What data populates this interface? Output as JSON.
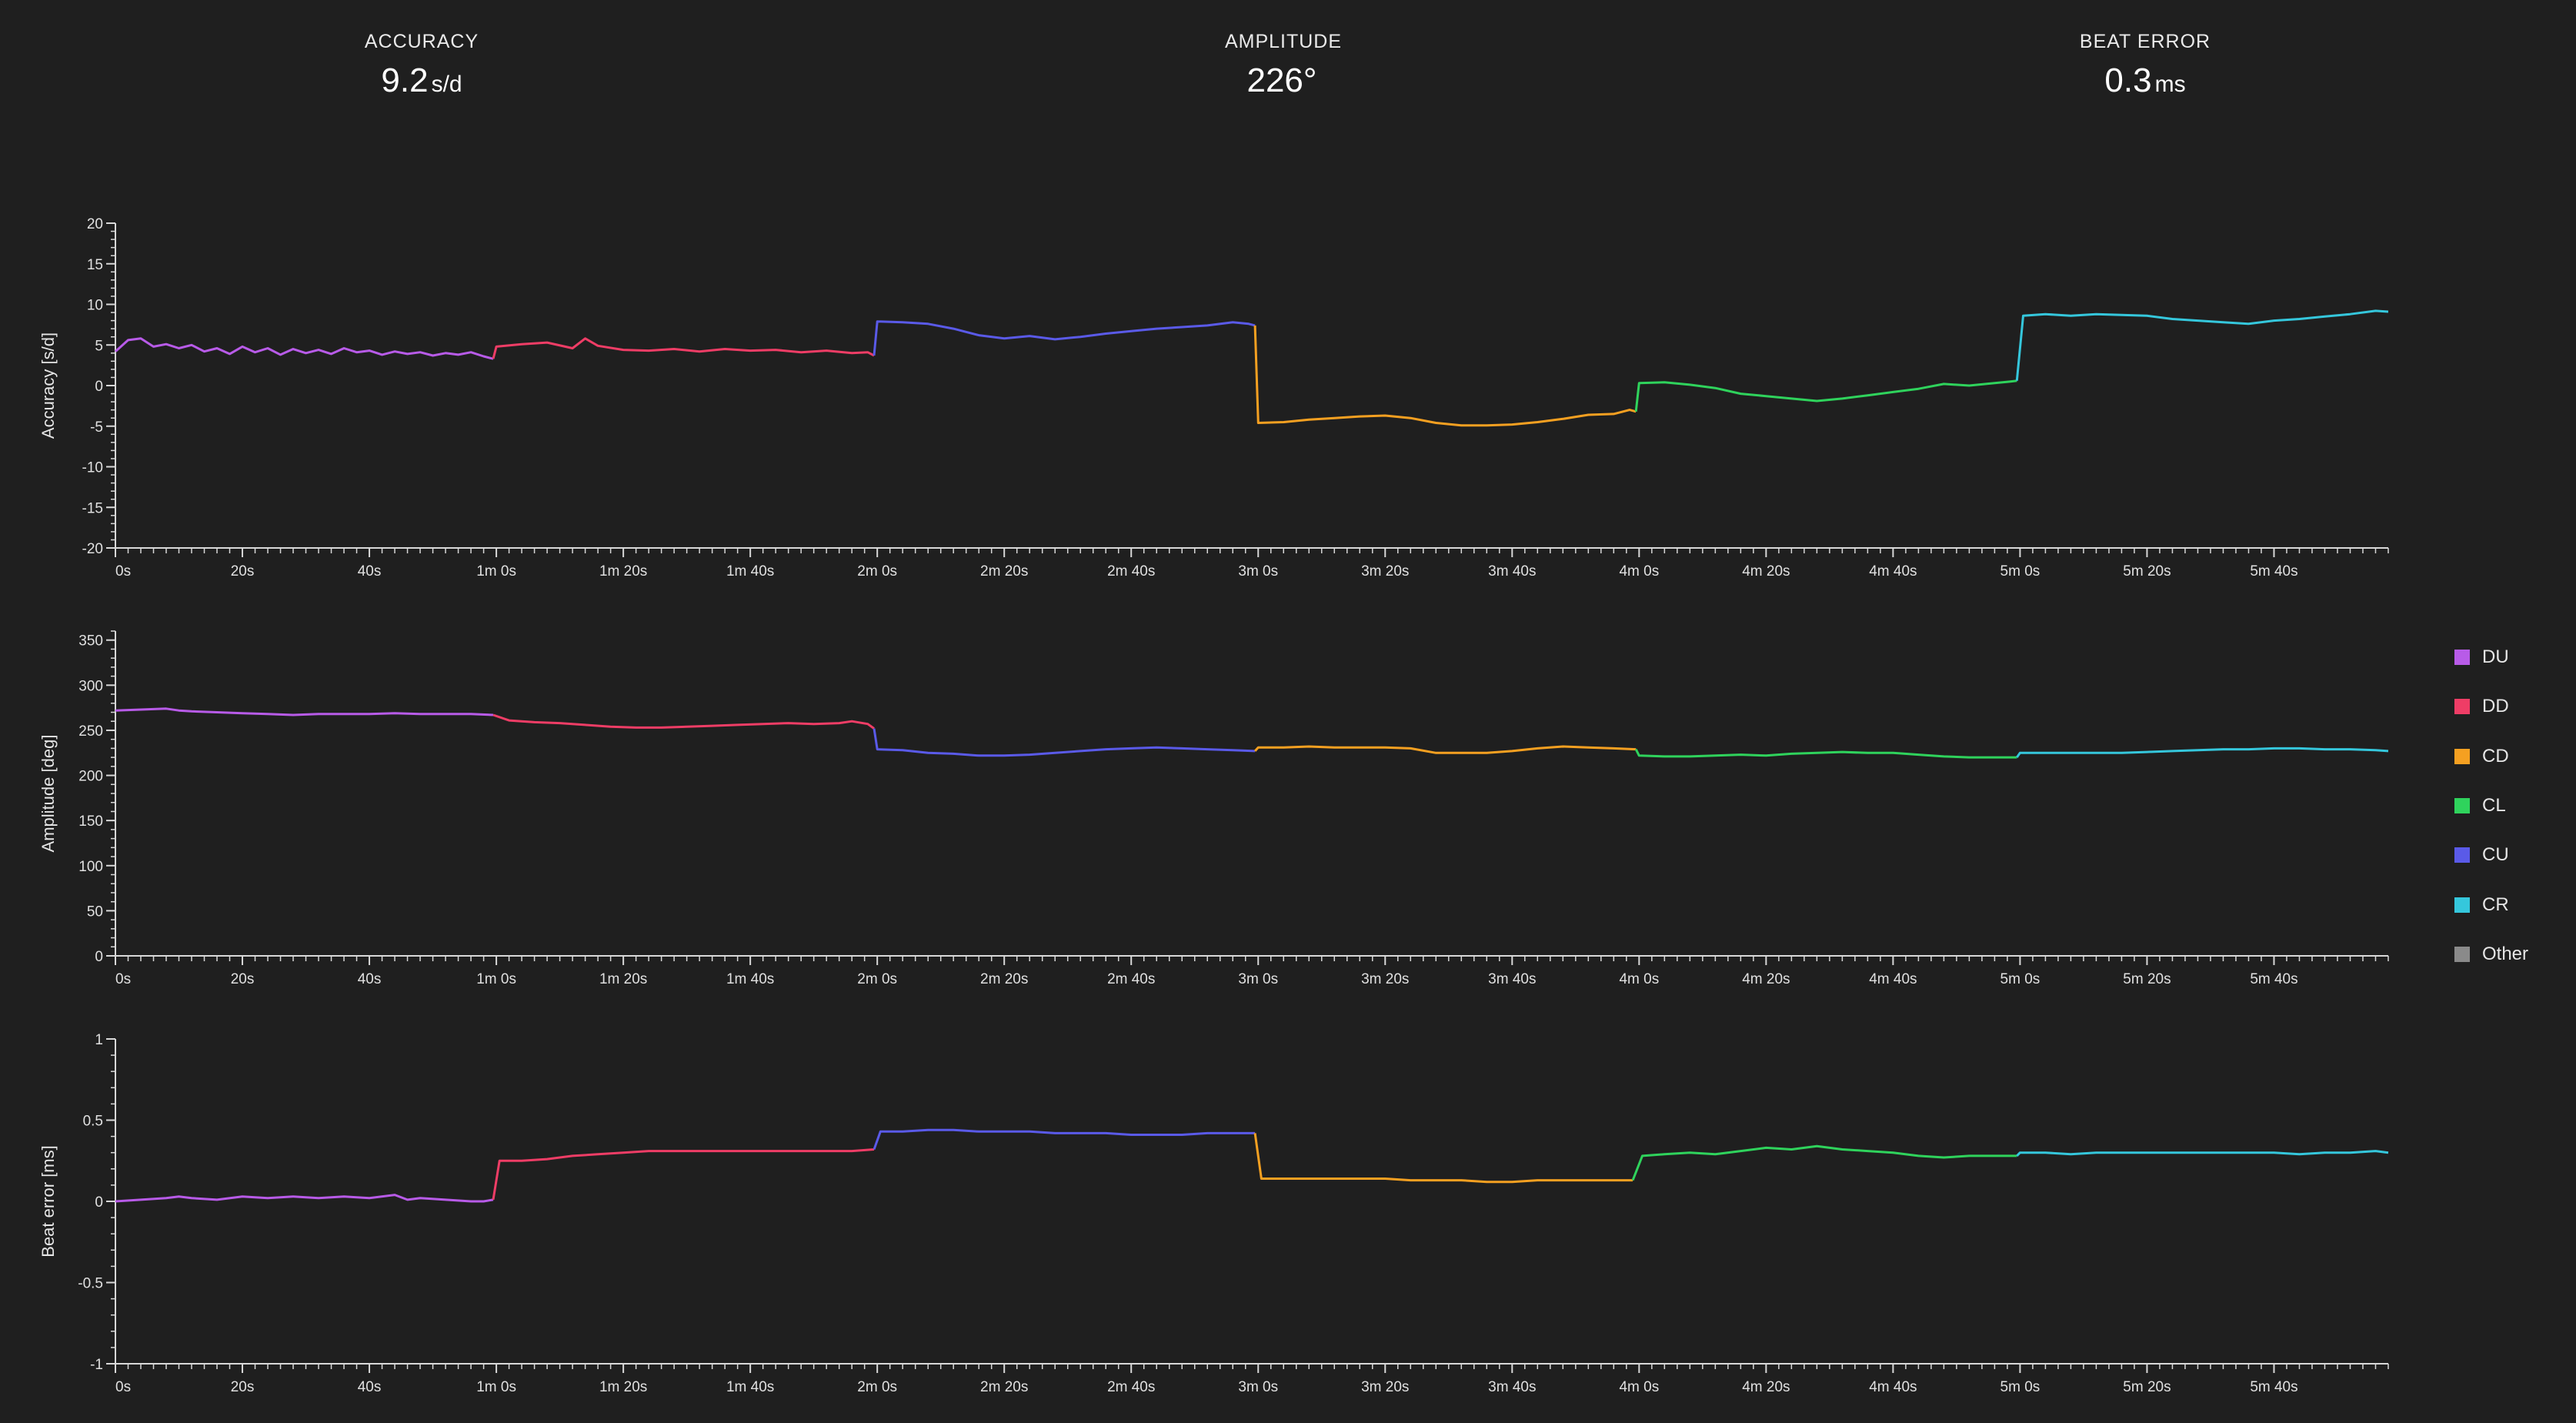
{
  "metrics": {
    "accuracy": {
      "label": "ACCURACY",
      "value": "9.2",
      "unit": "s/d"
    },
    "amplitude": {
      "label": "AMPLITUDE",
      "value": "226°",
      "unit": ""
    },
    "beat_error": {
      "label": "BEAT ERROR",
      "value": "0.3",
      "unit": "ms"
    }
  },
  "legend": [
    {
      "label": "DU",
      "color": "#b85be8"
    },
    {
      "label": "DD",
      "color": "#ef3d66"
    },
    {
      "label": "CD",
      "color": "#f5a021"
    },
    {
      "label": "CL",
      "color": "#2fd35c"
    },
    {
      "label": "CU",
      "color": "#5a5ae8"
    },
    {
      "label": "CR",
      "color": "#35c7dc"
    },
    {
      "label": "Other",
      "color": "#8a8a8a"
    }
  ],
  "chart_data": [
    {
      "type": "line",
      "ylabel": "Accuracy [s/d]",
      "xlim": [
        0,
        358
      ],
      "ylim": [
        -20,
        20
      ],
      "yticks": [
        -20,
        -15,
        -10,
        -5,
        0,
        5,
        10,
        15,
        20
      ],
      "xticks": [
        0,
        20,
        40,
        60,
        80,
        100,
        120,
        140,
        160,
        180,
        200,
        220,
        240,
        260,
        280,
        300,
        320,
        340
      ],
      "xtick_labels": [
        "0s",
        "20s",
        "40s",
        "1m 0s",
        "1m 20s",
        "1m 40s",
        "2m 0s",
        "2m 20s",
        "2m 40s",
        "3m 0s",
        "3m 20s",
        "3m 40s",
        "4m 0s",
        "4m 20s",
        "4m 40s",
        "5m 0s",
        "5m 20s",
        "5m 40s"
      ],
      "grid": false,
      "series": [
        {
          "name": "DU",
          "color": "#b85be8",
          "x": [
            0,
            2,
            4,
            6,
            8,
            10,
            12,
            14,
            16,
            18,
            20,
            22,
            24,
            26,
            28,
            30,
            32,
            34,
            36,
            38,
            40,
            42,
            44,
            46,
            48,
            50,
            52,
            54,
            56,
            58,
            59.5
          ],
          "y": [
            4.2,
            5.6,
            5.8,
            4.8,
            5.1,
            4.6,
            5.0,
            4.2,
            4.6,
            3.9,
            4.8,
            4.1,
            4.6,
            3.8,
            4.5,
            4.0,
            4.4,
            3.9,
            4.6,
            4.1,
            4.3,
            3.8,
            4.2,
            3.9,
            4.1,
            3.7,
            4.0,
            3.8,
            4.1,
            3.6,
            3.3
          ]
        },
        {
          "name": "DD",
          "color": "#ef3d66",
          "x": [
            59.5,
            60,
            64,
            68,
            72,
            74,
            76,
            80,
            84,
            88,
            92,
            96,
            100,
            104,
            108,
            112,
            116,
            118.5,
            119.5
          ],
          "y": [
            3.3,
            4.8,
            5.1,
            5.3,
            4.6,
            5.8,
            4.9,
            4.4,
            4.3,
            4.5,
            4.2,
            4.5,
            4.3,
            4.4,
            4.1,
            4.3,
            4.0,
            4.1,
            3.7
          ]
        },
        {
          "name": "CU",
          "color": "#5a5ae8",
          "x": [
            119.5,
            120,
            124,
            128,
            132,
            136,
            140,
            144,
            148,
            152,
            156,
            160,
            164,
            168,
            172,
            176,
            178.5,
            179.5
          ],
          "y": [
            3.7,
            7.9,
            7.8,
            7.6,
            7.0,
            6.2,
            5.8,
            6.1,
            5.7,
            6.0,
            6.4,
            6.7,
            7.0,
            7.2,
            7.4,
            7.8,
            7.6,
            7.4
          ]
        },
        {
          "name": "CD",
          "color": "#f5a021",
          "x": [
            179.5,
            180,
            184,
            188,
            192,
            196,
            200,
            204,
            208,
            212,
            216,
            220,
            224,
            228,
            232,
            236,
            238.5,
            239.5
          ],
          "y": [
            7.4,
            -4.6,
            -4.5,
            -4.2,
            -4.0,
            -3.8,
            -3.7,
            -4.0,
            -4.6,
            -4.9,
            -4.9,
            -4.8,
            -4.5,
            -4.1,
            -3.6,
            -3.5,
            -3.0,
            -3.2
          ]
        },
        {
          "name": "CL",
          "color": "#2fd35c",
          "x": [
            239.5,
            240,
            244,
            248,
            252,
            256,
            260,
            264,
            268,
            272,
            276,
            280,
            284,
            288,
            292,
            296,
            298.5,
            299.5
          ],
          "y": [
            -3.2,
            0.3,
            0.4,
            0.1,
            -0.3,
            -1.0,
            -1.3,
            -1.6,
            -1.9,
            -1.6,
            -1.2,
            -0.8,
            -0.4,
            0.2,
            0.0,
            0.3,
            0.5,
            0.6
          ]
        },
        {
          "name": "CR",
          "color": "#35c7dc",
          "x": [
            299.5,
            300.5,
            304,
            308,
            312,
            316,
            320,
            324,
            328,
            332,
            336,
            340,
            344,
            348,
            352,
            356,
            358
          ],
          "y": [
            0.6,
            8.6,
            8.8,
            8.6,
            8.8,
            8.7,
            8.6,
            8.2,
            8.0,
            7.8,
            7.6,
            8.0,
            8.2,
            8.5,
            8.8,
            9.2,
            9.1
          ]
        }
      ]
    },
    {
      "type": "line",
      "ylabel": "Amplitude [deg]",
      "xlim": [
        0,
        358
      ],
      "ylim": [
        0,
        360
      ],
      "yticks": [
        0,
        50,
        100,
        150,
        200,
        250,
        300,
        350
      ],
      "xticks": [
        0,
        20,
        40,
        60,
        80,
        100,
        120,
        140,
        160,
        180,
        200,
        220,
        240,
        260,
        280,
        300,
        320,
        340
      ],
      "xtick_labels": [
        "0s",
        "20s",
        "40s",
        "1m 0s",
        "1m 20s",
        "1m 40s",
        "2m 0s",
        "2m 20s",
        "2m 40s",
        "3m 0s",
        "3m 20s",
        "3m 40s",
        "4m 0s",
        "4m 20s",
        "4m 40s",
        "5m 0s",
        "5m 20s",
        "5m 40s"
      ],
      "grid": false,
      "series": [
        {
          "name": "DU",
          "color": "#b85be8",
          "x": [
            0,
            4,
            8,
            10,
            12,
            16,
            20,
            24,
            28,
            32,
            36,
            40,
            44,
            48,
            52,
            56,
            59.5
          ],
          "y": [
            272,
            273,
            274,
            272,
            271,
            270,
            269,
            268,
            267,
            268,
            268,
            268,
            269,
            268,
            268,
            268,
            267
          ]
        },
        {
          "name": "DD",
          "color": "#ef3d66",
          "x": [
            59.5,
            62,
            66,
            70,
            74,
            78,
            82,
            86,
            90,
            94,
            98,
            102,
            106,
            110,
            114,
            116,
            118.5,
            119.5
          ],
          "y": [
            267,
            261,
            259,
            258,
            256,
            254,
            253,
            253,
            254,
            255,
            256,
            257,
            258,
            257,
            258,
            260,
            257,
            252
          ]
        },
        {
          "name": "CU",
          "color": "#5a5ae8",
          "x": [
            119.5,
            120,
            124,
            128,
            132,
            136,
            140,
            144,
            148,
            152,
            156,
            160,
            164,
            168,
            172,
            176,
            179.5
          ],
          "y": [
            252,
            229,
            228,
            225,
            224,
            222,
            222,
            223,
            225,
            227,
            229,
            230,
            231,
            230,
            229,
            228,
            227
          ]
        },
        {
          "name": "CD",
          "color": "#f5a021",
          "x": [
            179.5,
            180,
            184,
            188,
            192,
            196,
            200,
            204,
            208,
            212,
            216,
            220,
            224,
            228,
            232,
            236,
            239.5
          ],
          "y": [
            227,
            231,
            231,
            232,
            231,
            231,
            231,
            230,
            225,
            225,
            225,
            227,
            230,
            232,
            231,
            230,
            229
          ]
        },
        {
          "name": "CL",
          "color": "#2fd35c",
          "x": [
            239.5,
            240,
            244,
            248,
            252,
            256,
            260,
            264,
            268,
            272,
            276,
            280,
            284,
            288,
            292,
            296,
            299.5
          ],
          "y": [
            229,
            222,
            221,
            221,
            222,
            223,
            222,
            224,
            225,
            226,
            225,
            225,
            223,
            221,
            220,
            220,
            220
          ]
        },
        {
          "name": "CR",
          "color": "#35c7dc",
          "x": [
            299.5,
            300,
            304,
            308,
            312,
            316,
            320,
            324,
            328,
            332,
            336,
            340,
            344,
            348,
            352,
            356,
            358
          ],
          "y": [
            220,
            225,
            225,
            225,
            225,
            225,
            226,
            227,
            228,
            229,
            229,
            230,
            230,
            229,
            229,
            228,
            227
          ]
        }
      ]
    },
    {
      "type": "line",
      "ylabel": "Beat error [ms]",
      "xlim": [
        0,
        358
      ],
      "ylim": [
        -1,
        1
      ],
      "yticks": [
        -1,
        -0.5,
        0,
        0.5,
        1
      ],
      "xticks": [
        0,
        20,
        40,
        60,
        80,
        100,
        120,
        140,
        160,
        180,
        200,
        220,
        240,
        260,
        280,
        300,
        320,
        340
      ],
      "xtick_labels": [
        "0s",
        "20s",
        "40s",
        "1m 0s",
        "1m 20s",
        "1m 40s",
        "2m 0s",
        "2m 20s",
        "2m 40s",
        "3m 0s",
        "3m 20s",
        "3m 40s",
        "4m 0s",
        "4m 20s",
        "4m 40s",
        "5m 0s",
        "5m 20s",
        "5m 40s"
      ],
      "grid": false,
      "series": [
        {
          "name": "DU",
          "color": "#b85be8",
          "x": [
            0,
            4,
            8,
            10,
            12,
            16,
            20,
            24,
            28,
            32,
            36,
            40,
            44,
            46,
            48,
            52,
            56,
            58,
            59.5
          ],
          "y": [
            0.0,
            0.01,
            0.02,
            0.03,
            0.02,
            0.01,
            0.03,
            0.02,
            0.03,
            0.02,
            0.03,
            0.02,
            0.04,
            0.01,
            0.02,
            0.01,
            0.0,
            0.0,
            0.01
          ]
        },
        {
          "name": "DD",
          "color": "#ef3d66",
          "x": [
            59.5,
            60.5,
            64,
            68,
            72,
            76,
            80,
            84,
            88,
            92,
            96,
            100,
            104,
            108,
            112,
            116,
            119.5
          ],
          "y": [
            0.01,
            0.25,
            0.25,
            0.26,
            0.28,
            0.29,
            0.3,
            0.31,
            0.31,
            0.31,
            0.31,
            0.31,
            0.31,
            0.31,
            0.31,
            0.31,
            0.32
          ]
        },
        {
          "name": "CU",
          "color": "#5a5ae8",
          "x": [
            119.5,
            120.5,
            124,
            128,
            132,
            136,
            140,
            144,
            148,
            152,
            156,
            160,
            164,
            168,
            172,
            176,
            179.5
          ],
          "y": [
            0.32,
            0.43,
            0.43,
            0.44,
            0.44,
            0.43,
            0.43,
            0.43,
            0.42,
            0.42,
            0.42,
            0.41,
            0.41,
            0.41,
            0.42,
            0.42,
            0.42
          ]
        },
        {
          "name": "CD",
          "color": "#f5a021",
          "x": [
            179.5,
            180.5,
            184,
            188,
            192,
            196,
            200,
            204,
            208,
            212,
            216,
            220,
            224,
            228,
            232,
            236,
            239
          ],
          "y": [
            0.42,
            0.14,
            0.14,
            0.14,
            0.14,
            0.14,
            0.14,
            0.13,
            0.13,
            0.13,
            0.12,
            0.12,
            0.13,
            0.13,
            0.13,
            0.13,
            0.13
          ]
        },
        {
          "name": "CL",
          "color": "#2fd35c",
          "x": [
            239,
            240.5,
            244,
            248,
            252,
            256,
            260,
            264,
            268,
            272,
            276,
            280,
            284,
            288,
            292,
            296,
            299.5
          ],
          "y": [
            0.13,
            0.28,
            0.29,
            0.3,
            0.29,
            0.31,
            0.33,
            0.32,
            0.34,
            0.32,
            0.31,
            0.3,
            0.28,
            0.27,
            0.28,
            0.28,
            0.28
          ]
        },
        {
          "name": "CR",
          "color": "#35c7dc",
          "x": [
            299.5,
            300,
            304,
            308,
            312,
            316,
            320,
            324,
            328,
            332,
            336,
            340,
            344,
            348,
            352,
            356,
            358
          ],
          "y": [
            0.28,
            0.3,
            0.3,
            0.29,
            0.3,
            0.3,
            0.3,
            0.3,
            0.3,
            0.3,
            0.3,
            0.3,
            0.29,
            0.3,
            0.3,
            0.31,
            0.3
          ]
        }
      ]
    }
  ]
}
